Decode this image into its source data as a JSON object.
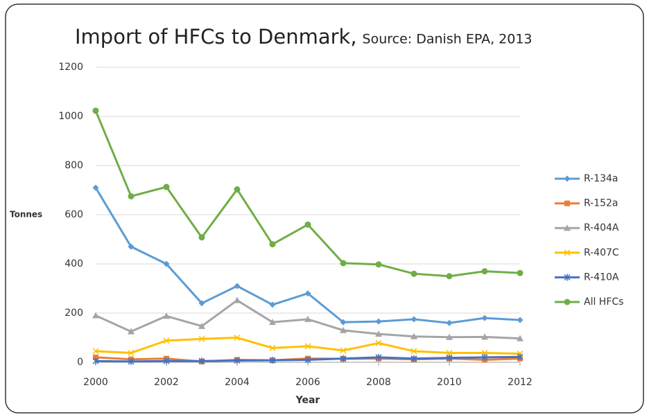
{
  "chart_data": {
    "type": "line",
    "title": "Import of HFCs to Denmark,",
    "subtitle": "Source: Danish EPA, 2013",
    "x_label": "Year",
    "y_label": "Tonnes",
    "x": [
      2000,
      2001,
      2002,
      2003,
      2004,
      2005,
      2006,
      2007,
      2008,
      2009,
      2010,
      2011,
      2012
    ],
    "xlim": [
      2000,
      2012
    ],
    "xticks": [
      2000,
      2002,
      2004,
      2006,
      2008,
      2010,
      2012
    ],
    "ylim": [
      0,
      1200
    ],
    "yticks": [
      0,
      200,
      400,
      600,
      800,
      1000,
      1200
    ],
    "grid": true,
    "legend": "right",
    "series": [
      {
        "name": "R-134a",
        "color": "#5b9bd5",
        "marker": "diamond",
        "values": [
          710,
          470,
          400,
          240,
          310,
          234,
          280,
          163,
          166,
          175,
          160,
          180,
          172
        ]
      },
      {
        "name": "R-152a",
        "color": "#ed7d31",
        "marker": "square",
        "values": [
          20,
          12,
          15,
          3,
          10,
          8,
          15,
          14,
          15,
          12,
          15,
          10,
          15
        ]
      },
      {
        "name": "R-404A",
        "color": "#a5a5a5",
        "marker": "triangle",
        "values": [
          190,
          125,
          188,
          147,
          252,
          163,
          175,
          130,
          115,
          105,
          102,
          103,
          97
        ]
      },
      {
        "name": "R-407C",
        "color": "#ffc000",
        "marker": "cross",
        "values": [
          45,
          38,
          88,
          95,
          100,
          58,
          65,
          48,
          78,
          45,
          38,
          38,
          35
        ]
      },
      {
        "name": "R-410A",
        "color": "#4472c4",
        "marker": "star",
        "values": [
          5,
          3,
          5,
          5,
          7,
          8,
          10,
          15,
          20,
          15,
          18,
          20,
          22
        ]
      },
      {
        "name": "All HFCs",
        "color": "#70ad47",
        "marker": "circle",
        "values": [
          1023,
          675,
          713,
          508,
          703,
          480,
          560,
          403,
          398,
          360,
          350,
          370,
          363
        ]
      }
    ]
  }
}
